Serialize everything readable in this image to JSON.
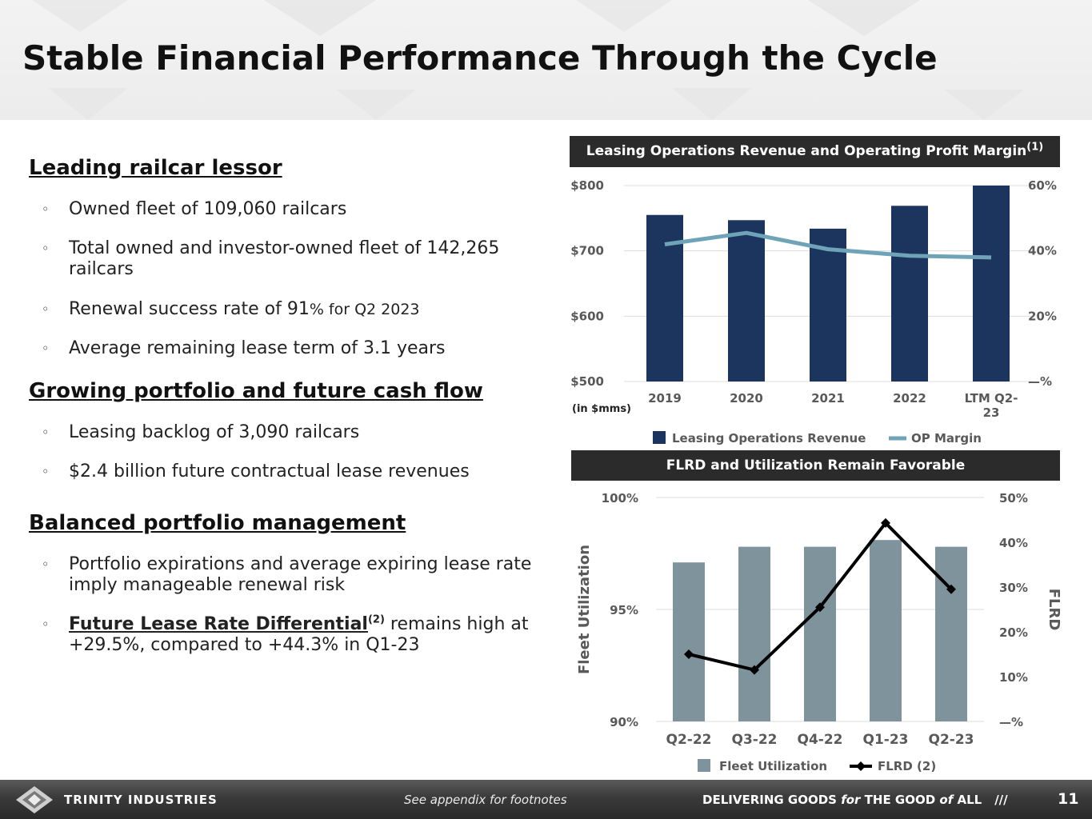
{
  "title": "Stable Financial Performance Through the Cycle",
  "sections": [
    {
      "heading": "Leading railcar lessor",
      "bullets": [
        {
          "text": "Owned fleet of 109,060 railcars"
        },
        {
          "text": "Total owned and investor-owned fleet of 142,265 railcars"
        },
        {
          "text": "Renewal success rate of 91",
          "small": "% for Q2 2023"
        },
        {
          "text": "Average remaining lease term of 3.1 years"
        }
      ]
    },
    {
      "heading": "Growing portfolio and future cash flow",
      "bullets": [
        {
          "text": "Leasing backlog of 3,090 railcars"
        },
        {
          "text": "$2.4 billion future contractual lease revenues"
        }
      ]
    },
    {
      "heading": "Balanced portfolio management",
      "bullets": [
        {
          "text": "Portfolio expirations and average expiring lease rate imply manageable renewal risk"
        },
        {
          "bold": "Future Lease Rate Differential",
          "sup": "(2)",
          "text": " remains high at +29.5%, compared to +44.3% in Q1-23"
        }
      ]
    }
  ],
  "chart1": {
    "banner": "Leasing Operations Revenue and Operating Profit Margin",
    "banner_sup": "(1)",
    "unit_note": "(in $mms)",
    "y_left_ticks": [
      "$800",
      "$700",
      "$600",
      "$500"
    ],
    "y_right_ticks": [
      "60%",
      "40%",
      "20%",
      "—%"
    ],
    "legend": [
      "Leasing Operations Revenue",
      "OP Margin"
    ]
  },
  "chart2": {
    "banner": "FLRD and Utilization Remain Favorable",
    "y_left_label": "Fleet Utilization",
    "y_right_label": "FLRD",
    "y_left_ticks": [
      "100%",
      "95%",
      "90%"
    ],
    "y_right_ticks": [
      "50%",
      "40%",
      "30%",
      "20%",
      "10%",
      "—%"
    ],
    "legend": [
      "Fleet Utilization",
      "FLRD (2)"
    ]
  },
  "chart_data": [
    {
      "type": "bar",
      "title": "Leasing Operations Revenue and Operating Profit Margin",
      "categories": [
        "2019",
        "2020",
        "2021",
        "2022",
        "LTM Q2-23"
      ],
      "series": [
        {
          "name": "Leasing Operations Revenue",
          "type": "bar",
          "axis": "left",
          "values": [
            755,
            747,
            734,
            769,
            800
          ]
        },
        {
          "name": "OP Margin",
          "type": "line",
          "axis": "right",
          "values": [
            42,
            45.5,
            40.5,
            38.5,
            38
          ]
        }
      ],
      "ylim_left": [
        500,
        800
      ],
      "ylim_right": [
        0,
        60
      ],
      "ylabel": "(in $mms)",
      "grid": true,
      "legend": "bottom",
      "colors": {
        "bar": "#1c355e",
        "line": "#6ea3b8"
      }
    },
    {
      "type": "bar",
      "title": "FLRD and Utilization Remain Favorable",
      "categories": [
        "Q2-22",
        "Q3-22",
        "Q4-22",
        "Q1-23",
        "Q2-23"
      ],
      "series": [
        {
          "name": "Fleet Utilization",
          "type": "bar",
          "axis": "left",
          "values": [
            97.1,
            97.8,
            97.8,
            98.1,
            97.8
          ]
        },
        {
          "name": "FLRD (2)",
          "type": "line",
          "axis": "right",
          "values": [
            15,
            11.5,
            25.5,
            44.3,
            29.5
          ]
        }
      ],
      "ylim_left": [
        90,
        100
      ],
      "ylim_right": [
        0,
        50
      ],
      "xlabel": "",
      "ylabel": "Fleet Utilization",
      "ylabel_right": "FLRD",
      "grid": true,
      "legend": "bottom",
      "colors": {
        "bar": "#7e939c",
        "line": "#000000"
      }
    }
  ],
  "footer": {
    "logo_text": "TRINITY INDUSTRIES",
    "note": "See appendix for footnotes",
    "tagline_a": "DELIVERING GOODS ",
    "tagline_for": "for",
    "tagline_b": " THE GOOD ",
    "tagline_of": "of",
    "tagline_c": " ALL",
    "slashes": "///",
    "page_number": "11"
  }
}
